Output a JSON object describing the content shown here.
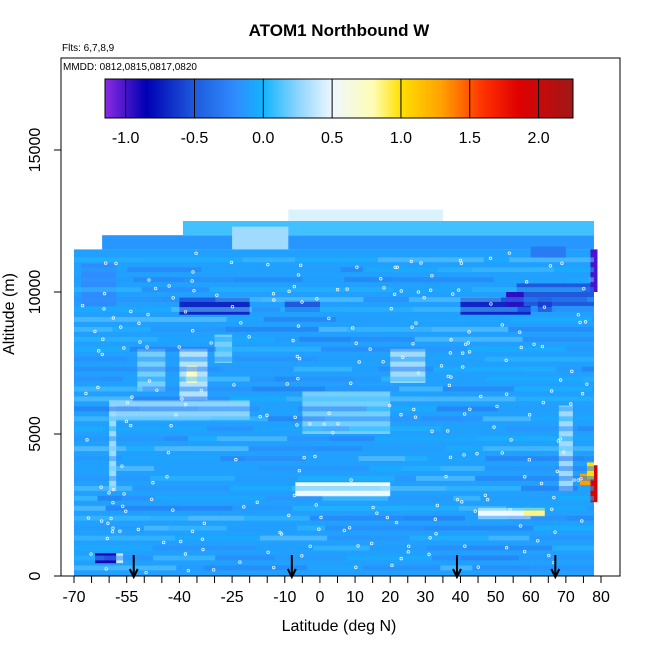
{
  "chart_data": {
    "type": "heatmap",
    "title": "ATOM1 Northbound W",
    "subtitle_flights": "Flts: 6,7,8,9",
    "subtitle_dates": "MMDD: 0812,0815,0817,0820",
    "xlabel": "Latitude (deg N)",
    "ylabel": "Altitude (m)",
    "xlim": [
      -70,
      80
    ],
    "ylim": [
      0,
      17500
    ],
    "x_tick_labels": [
      "-70",
      "-55",
      "-40",
      "-25",
      "-10",
      "0",
      "10",
      "20",
      "30",
      "40",
      "50",
      "60",
      "70",
      "80"
    ],
    "x_tick_values": [
      -70,
      -55,
      -40,
      -25,
      -10,
      0,
      10,
      20,
      30,
      40,
      50,
      60,
      70,
      80
    ],
    "x_minor_ticks": [
      -65,
      -60,
      -50,
      -45,
      -35,
      -30,
      -20,
      -15,
      -5,
      5,
      15,
      25,
      35,
      45,
      55,
      65,
      75
    ],
    "y_tick_labels": [
      "0",
      "5000",
      "10000",
      "15000"
    ],
    "y_tick_values": [
      0,
      5000,
      10000,
      15000
    ],
    "colorbar": {
      "tick_labels": [
        "-1.0",
        "-0.5",
        "0.0",
        "0.5",
        "1.0",
        "1.5",
        "2.0"
      ],
      "tick_values": [
        -1.0,
        -0.5,
        0.0,
        0.5,
        1.0,
        1.5,
        2.0
      ],
      "range": [
        -1.15,
        2.25
      ],
      "stops": [
        {
          "v": -1.15,
          "c": "#8a2be2"
        },
        {
          "v": -0.85,
          "c": "#0000b4"
        },
        {
          "v": -0.5,
          "c": "#1e5adc"
        },
        {
          "v": -0.2,
          "c": "#2f8cff"
        },
        {
          "v": 0.0,
          "c": "#12b4ff"
        },
        {
          "v": 0.25,
          "c": "#8cd4ff"
        },
        {
          "v": 0.5,
          "c": "#eef8ff"
        },
        {
          "v": 0.8,
          "c": "#fffcb4"
        },
        {
          "v": 1.0,
          "c": "#ffe000"
        },
        {
          "v": 1.3,
          "c": "#ffa000"
        },
        {
          "v": 1.6,
          "c": "#ff3000"
        },
        {
          "v": 1.85,
          "c": "#e00000"
        },
        {
          "v": 2.25,
          "c": "#a01818"
        }
      ]
    },
    "background_value": -0.08,
    "regions": [
      {
        "lat": [
          -70,
          78
        ],
        "alt": [
          0,
          11500
        ],
        "v": -0.1
      },
      {
        "lat": [
          -62,
          78
        ],
        "alt": [
          11500,
          12000
        ],
        "v": -0.15
      },
      {
        "lat": [
          -39,
          78
        ],
        "alt": [
          12000,
          12500
        ],
        "v": 0.1
      },
      {
        "lat": [
          -9,
          35
        ],
        "alt": [
          12500,
          12900
        ],
        "v": 0.45
      },
      {
        "lat": [
          -25,
          -9
        ],
        "alt": [
          11500,
          12300
        ],
        "v": 0.3
      },
      {
        "lat": [
          -68,
          -58
        ],
        "alt": [
          9500,
          11000
        ],
        "v": -0.2
      },
      {
        "lat": [
          -40,
          -20
        ],
        "alt": [
          9200,
          9800
        ],
        "v": -0.7
      },
      {
        "lat": [
          -30,
          -25
        ],
        "alt": [
          7500,
          8500
        ],
        "v": 0.2
      },
      {
        "lat": [
          -40,
          -32
        ],
        "alt": [
          6000,
          8000
        ],
        "v": 0.35
      },
      {
        "lat": [
          -38,
          -35
        ],
        "alt": [
          6800,
          7400
        ],
        "v": 0.75
      },
      {
        "lat": [
          -60,
          -20
        ],
        "alt": [
          5500,
          6200
        ],
        "v": 0.25
      },
      {
        "lat": [
          -60,
          -58
        ],
        "alt": [
          3000,
          6000
        ],
        "v": 0.3
      },
      {
        "lat": [
          -5,
          20
        ],
        "alt": [
          5000,
          6500
        ],
        "v": 0.2
      },
      {
        "lat": [
          -7,
          20
        ],
        "alt": [
          2800,
          3300
        ],
        "v": 0.5
      },
      {
        "lat": [
          -52,
          -44
        ],
        "alt": [
          6500,
          8000
        ],
        "v": 0.2
      },
      {
        "lat": [
          40,
          60
        ],
        "alt": [
          9200,
          9800
        ],
        "v": -0.7
      },
      {
        "lat": [
          56,
          78
        ],
        "alt": [
          9500,
          10300
        ],
        "v": -0.5
      },
      {
        "lat": [
          53,
          58
        ],
        "alt": [
          9500,
          10000
        ],
        "v": -0.95
      },
      {
        "lat": [
          60,
          70
        ],
        "alt": [
          11200,
          11600
        ],
        "v": -0.3
      },
      {
        "lat": [
          77,
          79
        ],
        "alt": [
          10000,
          11500
        ],
        "v": -1.0
      },
      {
        "lat": [
          45,
          60
        ],
        "alt": [
          2000,
          2400
        ],
        "v": 0.5
      },
      {
        "lat": [
          58,
          64
        ],
        "alt": [
          2100,
          2400
        ],
        "v": 0.85
      },
      {
        "lat": [
          74,
          79
        ],
        "alt": [
          3200,
          3600
        ],
        "v": 1.3
      },
      {
        "lat": [
          77,
          79
        ],
        "alt": [
          2600,
          3900
        ],
        "v": 1.9
      },
      {
        "lat": [
          76,
          78
        ],
        "alt": [
          3400,
          4000
        ],
        "v": 1.0
      },
      {
        "lat": [
          -64,
          -56
        ],
        "alt": [
          450,
          800
        ],
        "v": -0.9
      },
      {
        "lat": [
          -58,
          -56
        ],
        "alt": [
          450,
          800
        ],
        "v": 0.4
      },
      {
        "lat": [
          68,
          72
        ],
        "alt": [
          3000,
          6000
        ],
        "v": 0.3
      },
      {
        "lat": [
          20,
          30
        ],
        "alt": [
          6800,
          8000
        ],
        "v": 0.3
      },
      {
        "lat": [
          -10,
          0
        ],
        "alt": [
          9300,
          9700
        ],
        "v": -0.5
      },
      {
        "lat": [
          62,
          66
        ],
        "alt": [
          9300,
          9800
        ],
        "v": -0.6
      }
    ],
    "arrows_latitude": [
      -53,
      -8,
      39,
      67
    ]
  }
}
